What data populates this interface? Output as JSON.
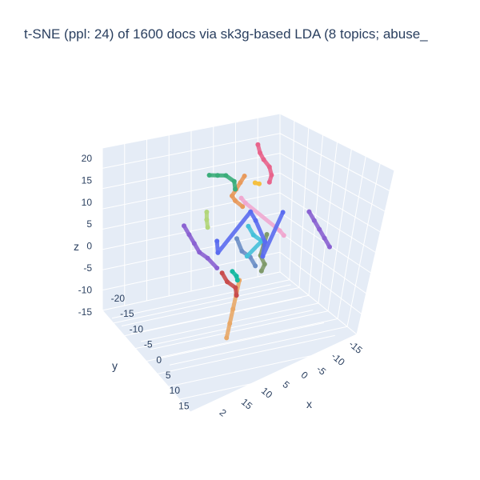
{
  "chart_data": {
    "type": "scatter",
    "title": "t-SNE (ppl: 24) of 1600 docs via sk3g-based LDA (8 topics; abuse_",
    "axes": {
      "x": {
        "label": "x",
        "ticks": [
          "-15",
          "-10",
          "-5",
          "0",
          "5",
          "10",
          "15",
          "2"
        ]
      },
      "y": {
        "label": "y",
        "ticks": [
          "-20",
          "-15",
          "-10",
          "-5",
          "0",
          "5",
          "10",
          "15"
        ]
      },
      "z": {
        "label": "z",
        "ticks": [
          "20",
          "15",
          "10",
          "5",
          "0",
          "-5",
          "-10",
          "-15"
        ]
      }
    },
    "grid": true,
    "legend": "none",
    "series": [
      {
        "color": "#e8648c",
        "points": [
          [
            2,
            -3,
            20
          ],
          [
            2.5,
            -3,
            18
          ],
          [
            3,
            -3.5,
            16
          ],
          [
            4,
            -4,
            14
          ],
          [
            4.5,
            -4,
            12
          ],
          [
            4,
            -4,
            10
          ]
        ]
      },
      {
        "color": "#e89a5c",
        "points": [
          [
            -2,
            -4,
            10
          ],
          [
            -3,
            -4,
            8
          ],
          [
            -4,
            -4,
            6
          ],
          [
            -5,
            -4,
            4
          ],
          [
            -5,
            -5,
            2
          ],
          [
            -4,
            -6,
            0
          ]
        ]
      },
      {
        "color": "#e8a868",
        "points": [
          [
            6,
            8,
            -6
          ],
          [
            6,
            9,
            -9
          ],
          [
            6,
            10,
            -12
          ],
          [
            6,
            11,
            -15
          ],
          [
            6,
            12,
            -18
          ]
        ]
      },
      {
        "color": "#3aad7a",
        "points": [
          [
            -12,
            -6,
            6
          ],
          [
            -10,
            -6,
            6.5
          ],
          [
            -8,
            -6,
            7
          ],
          [
            -6,
            -6,
            6
          ],
          [
            -5,
            -5,
            5
          ]
        ]
      },
      {
        "color": "#8a62d2",
        "points": [
          [
            -15,
            -2,
            -5
          ],
          [
            -13,
            -1,
            -6
          ],
          [
            -11,
            0,
            -7
          ],
          [
            -9,
            1,
            -8
          ],
          [
            -7,
            1,
            -9
          ],
          [
            -4,
            2,
            -10
          ]
        ]
      },
      {
        "color": "#8a62d2",
        "points": [
          [
            12,
            -6,
            3
          ],
          [
            14,
            -5,
            2
          ],
          [
            16,
            -4,
            1
          ],
          [
            18,
            -3,
            0
          ],
          [
            20,
            -2,
            -1
          ]
        ]
      },
      {
        "color": "#7f9a6b",
        "points": [
          [
            8,
            2,
            2
          ],
          [
            8,
            3,
            0
          ],
          [
            8,
            4,
            -2
          ],
          [
            9,
            4,
            -4
          ],
          [
            9,
            5,
            -5
          ]
        ]
      },
      {
        "color": "#c84c4c",
        "points": [
          [
            -2,
            3,
            -10
          ],
          [
            0,
            4,
            -11
          ],
          [
            2,
            4,
            -12
          ],
          [
            3,
            5,
            -13
          ]
        ]
      },
      {
        "color": "#6c8fc7",
        "points": [
          [
            0,
            1,
            -2
          ],
          [
            2,
            2,
            -4
          ],
          [
            4,
            2,
            -5
          ],
          [
            6,
            3,
            -6
          ]
        ]
      },
      {
        "color": "#45c0d9",
        "points": [
          [
            2,
            0,
            1
          ],
          [
            4,
            1,
            0
          ],
          [
            6,
            1,
            -1
          ],
          [
            4,
            3,
            -4
          ]
        ]
      },
      {
        "color": "#16b9a2",
        "points": [
          [
            2,
            5,
            -7
          ],
          [
            3,
            5,
            -8
          ],
          [
            4,
            6,
            -8
          ]
        ]
      },
      {
        "color": "#b2d67a",
        "points": [
          [
            -8,
            0,
            2
          ],
          [
            -8,
            0,
            0
          ],
          [
            -7,
            1,
            -1
          ]
        ]
      },
      {
        "color": "#f0a8d0",
        "points": [
          [
            -2,
            -3,
            5
          ],
          [
            -1,
            -3,
            4
          ],
          [
            8,
            -2,
            0
          ],
          [
            9,
            -2,
            -1
          ]
        ]
      },
      {
        "color": "#f5c040",
        "points": [
          [
            -1,
            -6,
            7
          ],
          [
            0,
            -6,
            7
          ]
        ]
      },
      {
        "color": "#5a6cf0",
        "points": [
          [
            -4,
            2,
            -3
          ],
          [
            -3,
            3,
            -5
          ],
          [
            1,
            -2,
            3
          ],
          [
            3,
            -1,
            2
          ],
          [
            6,
            0,
            -2
          ],
          [
            7,
            2,
            -4
          ],
          [
            8,
            -3,
            4
          ]
        ]
      }
    ]
  }
}
